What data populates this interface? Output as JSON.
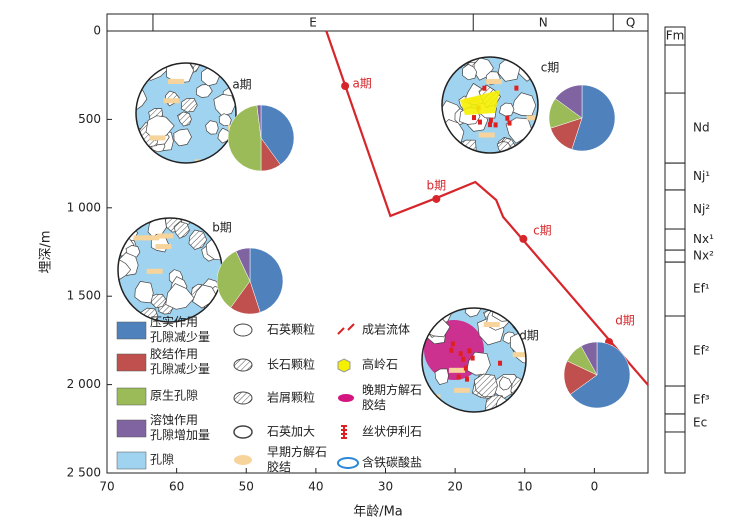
{
  "chart_data": {
    "type": "line",
    "x_label": "年龄/Ma",
    "y_label": "埋深/m",
    "xlim": [
      70,
      -7.7
    ],
    "xticks": [
      70,
      60,
      50,
      40,
      30,
      20,
      10,
      0
    ],
    "ylim": [
      0,
      2500
    ],
    "yticks": [
      0,
      500,
      {
        "value": 1000,
        "label": "1 000"
      },
      {
        "value": 1500,
        "label": "1 500"
      },
      {
        "value": 2000,
        "label": "2 000"
      },
      {
        "value": 2500,
        "label": "2 500"
      }
    ],
    "series": [
      {
        "name": "burial",
        "color": "#d7262b",
        "x": [
          38.5,
          29.3,
          22.7,
          17.1,
          14.1,
          13.1,
          -7.7
        ],
        "values": [
          0,
          1046,
          945,
          854,
          956,
          1052,
          2002
        ]
      }
    ],
    "stages": [
      {
        "label": "a期",
        "x": 35.8,
        "value": 311
      },
      {
        "label": "b期",
        "x": 22.7,
        "value": 950
      },
      {
        "label": "c期",
        "x": 10.2,
        "value": 1176
      },
      {
        "label": "d期",
        "x": -2.1,
        "value": 1759
      }
    ],
    "periods": [
      {
        "name": "E",
        "start": 63.4,
        "end": 17.4
      },
      {
        "name": "N",
        "start": 17.4,
        "end": -2.7
      },
      {
        "name": "Q",
        "start": -2.7,
        "end": -7.7
      }
    ],
    "formation_header": "Fm",
    "formations": [
      {
        "name": "Nd",
        "top": 351,
        "bottom": 747
      },
      {
        "name": "Nj¹",
        "top": 747,
        "bottom": 899
      },
      {
        "name": "Nj²",
        "top": 899,
        "bottom": 1120
      },
      {
        "name": "Nx¹",
        "top": 1120,
        "bottom": 1239
      },
      {
        "name": "Nx²",
        "top": 1239,
        "bottom": 1307
      },
      {
        "name": "Ef¹",
        "top": 1307,
        "bottom": 1612
      },
      {
        "name": "Ef²",
        "top": 1612,
        "bottom": 2008
      },
      {
        "name": "Ef³",
        "top": 2008,
        "bottom": 2166
      },
      {
        "name": "Ec",
        "top": 2166,
        "bottom": 2268
      }
    ],
    "pie_categories": [
      {
        "label": [
          "压实作用",
          "孔隙减少量"
        ],
        "color": "#4f81bd"
      },
      {
        "label": [
          "胶结作用",
          "孔隙减少量"
        ],
        "color": "#c0504d"
      },
      {
        "label": [
          "原生孔隙"
        ],
        "color": "#9bbb59"
      },
      {
        "label": [
          "溶蚀作用",
          "孔隙增加量"
        ],
        "color": "#8064a2"
      }
    ],
    "pies": [
      {
        "label": "a期",
        "values": [
          40,
          10,
          48,
          2
        ]
      },
      {
        "label": "b期",
        "values": [
          45,
          15,
          33,
          7
        ]
      },
      {
        "label": "c期",
        "values": [
          55,
          15,
          15,
          15
        ]
      },
      {
        "label": "d期",
        "values": [
          65,
          17,
          10,
          8
        ]
      }
    ],
    "legend_extra": [
      {
        "label": [
          "孔隙"
        ]
      },
      {
        "label": [
          "石英颗粒"
        ]
      },
      {
        "label": [
          "长石颗粒"
        ]
      },
      {
        "label": [
          "岩屑颗粒"
        ]
      },
      {
        "label": [
          "石英加大"
        ]
      },
      {
        "label": [
          "早期方解石",
          "胶结"
        ]
      },
      {
        "label": [
          "成岩流体"
        ]
      },
      {
        "label": [
          "高岭石"
        ]
      },
      {
        "label": [
          "晚期方解石",
          "胶结"
        ]
      },
      {
        "label": [
          "丝状伊利石"
        ]
      },
      {
        "label": [
          "含铁碳酸盐"
        ]
      }
    ]
  }
}
